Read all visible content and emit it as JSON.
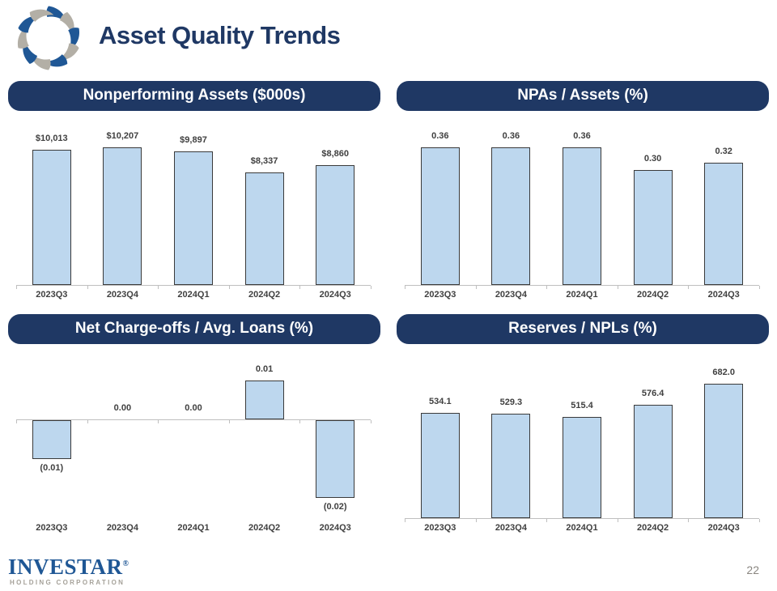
{
  "page": {
    "title": "Asset Quality Trends",
    "page_number": "22"
  },
  "logo": {
    "icon": "investar-swirl-logo",
    "company": "INVESTAR",
    "registered_mark": "®",
    "subtitle": "HOLDING CORPORATION"
  },
  "colors": {
    "header_navy": "#1F3864",
    "title_navy": "#1F3864",
    "bar_fill": "#BDD7EE",
    "bar_border": "#3A3A3A",
    "axis_gray": "#BFBFBF",
    "label_gray": "#404040",
    "investar_blue": "#1F5795",
    "footer_gray": "#A5A199"
  },
  "chart_data": [
    {
      "type": "bar",
      "title": "Nonperforming Assets ($000s)",
      "categories": [
        "2023Q3",
        "2023Q4",
        "2024Q1",
        "2024Q2",
        "2024Q3"
      ],
      "values": [
        10013,
        10207,
        9897,
        8337,
        8860
      ],
      "value_labels": [
        "$10,013",
        "$10,207",
        "$9,897",
        "$8,337",
        "$8,860"
      ],
      "xlabel": "",
      "ylabel": "",
      "ylim": [
        0,
        10500
      ],
      "grid": false,
      "legend": "none",
      "bar_color": "#BDD7EE"
    },
    {
      "type": "bar",
      "title": "NPAs / Assets (%)",
      "categories": [
        "2023Q3",
        "2023Q4",
        "2024Q1",
        "2024Q2",
        "2024Q3"
      ],
      "values": [
        0.36,
        0.36,
        0.36,
        0.3,
        0.32
      ],
      "value_labels": [
        "0.36",
        "0.36",
        "0.36",
        "0.30",
        "0.32"
      ],
      "xlabel": "",
      "ylabel": "",
      "ylim": [
        0,
        0.38
      ],
      "grid": false,
      "legend": "none",
      "bar_color": "#BDD7EE"
    },
    {
      "type": "bar",
      "title": "Net Charge-offs / Avg. Loans (%)",
      "categories": [
        "2023Q3",
        "2023Q4",
        "2024Q1",
        "2024Q2",
        "2024Q3"
      ],
      "values": [
        -0.01,
        0.0,
        0.0,
        0.01,
        -0.02
      ],
      "value_labels": [
        "(0.01)",
        "0.00",
        "0.00",
        "0.01",
        "(0.02)"
      ],
      "xlabel": "",
      "ylabel": "",
      "ylim": [
        -0.025,
        0.015
      ],
      "grid": false,
      "legend": "none",
      "bar_color": "#BDD7EE"
    },
    {
      "type": "bar",
      "title": "Reserves / NPLs (%)",
      "categories": [
        "2023Q3",
        "2023Q4",
        "2024Q1",
        "2024Q2",
        "2024Q3"
      ],
      "values": [
        534.1,
        529.3,
        515.4,
        576.4,
        682.0
      ],
      "value_labels": [
        "534.1",
        "529.3",
        "515.4",
        "576.4",
        "682.0"
      ],
      "xlabel": "",
      "ylabel": "",
      "ylim": [
        0,
        700
      ],
      "grid": false,
      "legend": "none",
      "bar_color": "#BDD7EE"
    }
  ]
}
